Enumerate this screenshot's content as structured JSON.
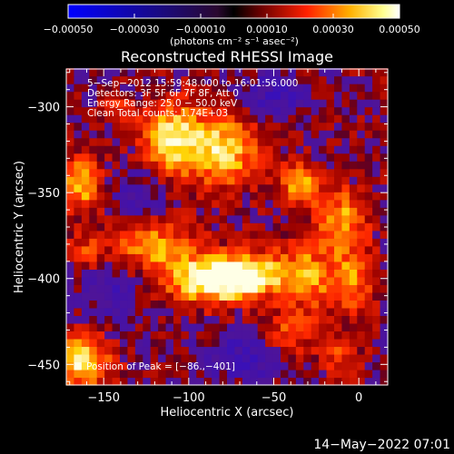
{
  "chart_data": {
    "type": "heatmap",
    "title": "Reconstructed RHESSI Image",
    "xlabel": "Heliocentric X (arcsec)",
    "ylabel": "Heliocentric Y (arcsec)",
    "xlim": [
      -172,
      17
    ],
    "ylim": [
      -462,
      -278
    ],
    "x_ticks": [
      -150,
      -100,
      -50,
      0
    ],
    "x_tick_labels": [
      "−150",
      "−100",
      "−50",
      "0"
    ],
    "y_ticks": [
      -300,
      -350,
      -400,
      -450
    ],
    "y_tick_labels": [
      "−300",
      "−350",
      "−400",
      "−450"
    ],
    "colorbar": {
      "range": [
        -0.0005,
        0.0005
      ],
      "ticks": [
        -0.0005,
        -0.0003,
        -0.0001,
        0.0001,
        0.0003,
        0.0005
      ],
      "tick_labels": [
        "−0.00050",
        "−0.00030",
        "−0.00010",
        "0.00010",
        "0.00030",
        "0.00050"
      ],
      "unit_label": "(photons cm⁻² s⁻¹ asec⁻²)"
    },
    "info_lines": [
      " 5−Sep−2012 15:59:48.000 to 16:01:56.000",
      "Detectors: 3F 5F 6F 7F 8F, Att 0",
      "Energy Range: 25.0 − 50.0 keV",
      "Clean     Total counts: 1.74E+03"
    ],
    "peak_label": "Position of Peak = [−86.,−401]",
    "peak": {
      "x": -86,
      "y": -401
    },
    "blobs": [
      {
        "x": -86,
        "y": -401,
        "sx": 18,
        "sy": 9,
        "a": 1.0
      },
      {
        "x": -60,
        "y": -397,
        "sx": 18,
        "sy": 9,
        "a": 0.7
      },
      {
        "x": -120,
        "y": -382,
        "sx": 18,
        "sy": 10,
        "a": 0.65
      },
      {
        "x": -30,
        "y": -398,
        "sx": 10,
        "sy": 14,
        "a": 0.45
      },
      {
        "x": -5,
        "y": -400,
        "sx": 10,
        "sy": 14,
        "a": 0.5
      },
      {
        "x": -110,
        "y": -318,
        "sx": 12,
        "sy": 14,
        "a": 0.85
      },
      {
        "x": -80,
        "y": -325,
        "sx": 14,
        "sy": 14,
        "a": 0.8
      },
      {
        "x": -35,
        "y": -345,
        "sx": 9,
        "sy": 9,
        "a": 0.6
      },
      {
        "x": -10,
        "y": -365,
        "sx": 10,
        "sy": 12,
        "a": 0.6
      },
      {
        "x": -163,
        "y": -345,
        "sx": 9,
        "sy": 11,
        "a": 0.65
      },
      {
        "x": -163,
        "y": -448,
        "sx": 12,
        "sy": 10,
        "a": 0.85
      },
      {
        "x": -160,
        "y": -385,
        "sx": 8,
        "sy": 8,
        "a": 0.35
      },
      {
        "x": -40,
        "y": -432,
        "sx": 10,
        "sy": 10,
        "a": 0.4
      },
      {
        "x": -10,
        "y": -445,
        "sx": 8,
        "sy": 8,
        "a": 0.35
      },
      {
        "x": -140,
        "y": -300,
        "sx": 6,
        "sy": 6,
        "a": 0.3
      }
    ],
    "negative_blobs": [
      {
        "x": -145,
        "y": -405,
        "sx": 14,
        "sy": 14,
        "a": 0.3
      },
      {
        "x": -70,
        "y": -445,
        "sx": 18,
        "sy": 10,
        "a": 0.3
      },
      {
        "x": -50,
        "y": -292,
        "sx": 14,
        "sy": 10,
        "a": 0.3
      },
      {
        "x": -130,
        "y": -350,
        "sx": 12,
        "sy": 12,
        "a": 0.25
      }
    ]
  },
  "footer_timestamp": "14−May−2022 07:01"
}
